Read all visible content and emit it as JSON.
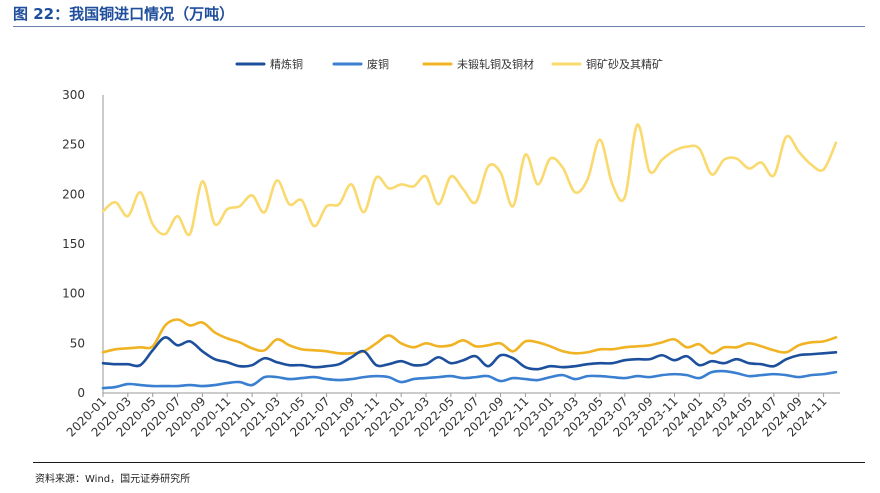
{
  "figure_title": "图 22：我国铜进口情况（万吨）",
  "source": "资料来源：Wind，国元证券研究所",
  "chart_data": {
    "type": "line",
    "title": "",
    "xlabel": "",
    "ylabel": "",
    "ylim": [
      0,
      300
    ],
    "yticks": [
      0,
      50,
      100,
      150,
      200,
      250,
      300
    ],
    "grid": false,
    "legend_position": "top",
    "x_tick_labels": [
      "2020-01",
      "2020-03",
      "2020-05",
      "2020-07",
      "2020-09",
      "2020-11",
      "2021-01",
      "2021-03",
      "2021-05",
      "2021-07",
      "2021-09",
      "2021-11",
      "2022-01",
      "2022-03",
      "2022-05",
      "2022-07",
      "2022-09",
      "2022-11",
      "2023-01",
      "2023-03",
      "2023-05",
      "2023-07",
      "2023-09",
      "2023-11",
      "2024-01",
      "2024-03",
      "2024-05",
      "2024-07",
      "2024-09",
      "2024-11"
    ],
    "x": [
      "2020-01",
      "2020-02",
      "2020-03",
      "2020-04",
      "2020-05",
      "2020-06",
      "2020-07",
      "2020-08",
      "2020-09",
      "2020-10",
      "2020-11",
      "2020-12",
      "2021-01",
      "2021-02",
      "2021-03",
      "2021-04",
      "2021-05",
      "2021-06",
      "2021-07",
      "2021-08",
      "2021-09",
      "2021-10",
      "2021-11",
      "2021-12",
      "2022-01",
      "2022-02",
      "2022-03",
      "2022-04",
      "2022-05",
      "2022-06",
      "2022-07",
      "2022-08",
      "2022-09",
      "2022-10",
      "2022-11",
      "2022-12",
      "2023-01",
      "2023-02",
      "2023-03",
      "2023-04",
      "2023-05",
      "2023-06",
      "2023-07",
      "2023-08",
      "2023-09",
      "2023-10",
      "2023-11",
      "2023-12",
      "2024-01",
      "2024-02",
      "2024-03",
      "2024-04",
      "2024-05",
      "2024-06",
      "2024-07",
      "2024-08",
      "2024-09",
      "2024-10",
      "2024-11",
      "2024-12"
    ],
    "series": [
      {
        "name": "精炼铜",
        "color": "#1c4f9c",
        "values": [
          30,
          29,
          29,
          28,
          43,
          56,
          48,
          52,
          42,
          34,
          31,
          27,
          28,
          35,
          31,
          28,
          28,
          26,
          27,
          29,
          36,
          42,
          28,
          29,
          32,
          28,
          29,
          36,
          30,
          33,
          37,
          27,
          38,
          35,
          26,
          24,
          27,
          26,
          27,
          29,
          30,
          30,
          33,
          34,
          34,
          38,
          33,
          37,
          28,
          32,
          30,
          34,
          30,
          29,
          27,
          34,
          38,
          39,
          40,
          41
        ]
      },
      {
        "name": "废铜",
        "color": "#3a7fd0",
        "values": [
          5,
          6,
          9,
          8,
          7,
          7,
          7,
          8,
          7,
          8,
          10,
          11,
          8,
          16,
          16,
          14,
          15,
          16,
          14,
          13,
          14,
          16,
          17,
          16,
          11,
          14,
          15,
          16,
          17,
          15,
          16,
          17,
          12,
          15,
          14,
          13,
          16,
          18,
          14,
          17,
          17,
          16,
          15,
          17,
          16,
          18,
          19,
          18,
          15,
          21,
          22,
          20,
          17,
          18,
          19,
          18,
          16,
          18,
          19,
          21
        ]
      },
      {
        "name": "未锻轧铜及铜材",
        "color": "#f0b323",
        "values": [
          41,
          44,
          45,
          46,
          47,
          68,
          74,
          68,
          71,
          61,
          55,
          51,
          45,
          43,
          54,
          48,
          44,
          43,
          42,
          40,
          40,
          42,
          50,
          58,
          50,
          46,
          50,
          47,
          48,
          53,
          47,
          48,
          50,
          42,
          52,
          51,
          47,
          42,
          40,
          41,
          44,
          44,
          46,
          47,
          48,
          51,
          54,
          46,
          49,
          40,
          46,
          46,
          50,
          47,
          43,
          41,
          48,
          51,
          52,
          56
        ]
      },
      {
        "name": "铜矿砂及其精矿",
        "color": "#fad96e",
        "values": [
          183,
          192,
          178,
          202,
          170,
          160,
          178,
          160,
          213,
          170,
          185,
          188,
          199,
          182,
          214,
          190,
          194,
          168,
          188,
          190,
          210,
          182,
          217,
          206,
          210,
          208,
          218,
          190,
          218,
          205,
          192,
          228,
          222,
          188,
          240,
          210,
          236,
          227,
          202,
          215,
          255,
          210,
          197,
          270,
          223,
          235,
          244,
          248,
          246,
          220,
          235,
          236,
          226,
          232,
          219,
          258,
          243,
          230,
          225,
          252
        ]
      }
    ]
  }
}
